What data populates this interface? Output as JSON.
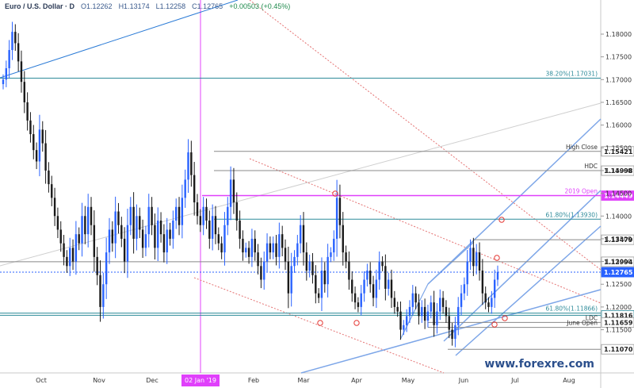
{
  "header": {
    "symbol": "Euro / U.S. Dollar",
    "timeframe": "D",
    "open": "O1.12262",
    "high": "H1.13174",
    "low": "L1.12258",
    "close": "C1.12765",
    "change": "+0.00503 (+0.45%)"
  },
  "watermark": "www.forexre.com",
  "colors": {
    "up": "#2962ff",
    "down": "#1a1a1a",
    "channel": "#7da6e8",
    "magenta": "#e040fb",
    "red_dash": "#e57373",
    "teal": "#2e8b9a",
    "gray": "#888888"
  },
  "chart_data": {
    "type": "candlestick",
    "symbol": "Euro / U.S. Dollar",
    "timeframe": "D",
    "ylim": [
      1.1055,
      1.1875
    ],
    "x_ticks": [
      "Oct",
      "Nov",
      "Dec",
      "02 Jan '19",
      "Feb",
      "Mar",
      "Apr",
      "May",
      "Jun",
      "Jul",
      "Aug"
    ],
    "y_ticks": [
      "1.18000",
      "1.17500",
      "1.17000",
      "1.16500",
      "1.16000",
      "1.15500",
      "1.15000",
      "1.14500",
      "1.14000",
      "1.13500",
      "1.13000",
      "1.12500",
      "1.12000",
      "1.11500"
    ],
    "levels": [
      {
        "label": "38.20%(1.17031)",
        "price": 1.17031,
        "tag": "",
        "style": "teal"
      },
      {
        "label": "High Close",
        "price": 1.15421,
        "tag": "1.15421",
        "style": "gray"
      },
      {
        "label": "HDC",
        "price": 1.14998,
        "tag": "1.14998",
        "style": "gray"
      },
      {
        "label": "2019 Open",
        "price": 1.14449,
        "tag": "1.14449",
        "style": "magenta"
      },
      {
        "label": "61.80%(1.13930)",
        "price": 1.1393,
        "tag": "",
        "style": "teal"
      },
      {
        "label": "",
        "price": 1.13479,
        "tag": "1.13479",
        "style": "gray"
      },
      {
        "label": "",
        "price": 1.12994,
        "tag": "1.12994",
        "style": "gray"
      },
      {
        "label": "",
        "price": 1.12765,
        "tag": "1.12765",
        "style": "current"
      },
      {
        "label": "61.80%(1.11866)",
        "price": 1.11866,
        "tag": "",
        "style": "teal"
      },
      {
        "label": "",
        "price": 1.11816,
        "tag": "1.11816",
        "style": "teal"
      },
      {
        "label": "LDC",
        "price": 1.1166,
        "tag": "1.11659",
        "style": "gray"
      },
      {
        "label": "June Open",
        "price": 1.1155,
        "tag": "",
        "style": "gray"
      },
      {
        "label": "",
        "price": 1.1107,
        "tag": "1.11070",
        "style": "gray"
      }
    ],
    "closes": [
      1.17,
      1.1725,
      1.1765,
      1.1805,
      1.178,
      1.174,
      1.1695,
      1.165,
      1.161,
      1.158,
      1.1545,
      1.152,
      1.159,
      1.156,
      1.15,
      1.147,
      1.144,
      1.14,
      1.137,
      1.134,
      1.131,
      1.129,
      1.133,
      1.13,
      1.136,
      1.134,
      1.14,
      1.136,
      1.142,
      1.138,
      1.131,
      1.127,
      1.12,
      1.125,
      1.132,
      1.137,
      1.134,
      1.141,
      1.138,
      1.135,
      1.13,
      1.138,
      1.142,
      1.135,
      1.14,
      1.137,
      1.133,
      1.136,
      1.142,
      1.138,
      1.133,
      1.139,
      1.136,
      1.132,
      1.137,
      1.135,
      1.139,
      1.142,
      1.138,
      1.144,
      1.148,
      1.154,
      1.149,
      1.143,
      1.14,
      1.138,
      1.142,
      1.139,
      1.135,
      1.14,
      1.136,
      1.134,
      1.132,
      1.138,
      1.142,
      1.148,
      1.143,
      1.139,
      1.135,
      1.132,
      1.133,
      1.131,
      1.135,
      1.132,
      1.129,
      1.126,
      1.13,
      1.134,
      1.132,
      1.134,
      1.131,
      1.136,
      1.133,
      1.13,
      1.123,
      1.129,
      1.131,
      1.134,
      1.138,
      1.132,
      1.128,
      1.13,
      1.127,
      1.123,
      1.122,
      1.128,
      1.125,
      1.131,
      1.132,
      1.135,
      1.144,
      1.138,
      1.132,
      1.13,
      1.126,
      1.123,
      1.121,
      1.12,
      1.123,
      1.126,
      1.128,
      1.125,
      1.122,
      1.126,
      1.13,
      1.129,
      1.124,
      1.126,
      1.122,
      1.12,
      1.119,
      1.115,
      1.116,
      1.118,
      1.12,
      1.123,
      1.121,
      1.118,
      1.12,
      1.117,
      1.119,
      1.121,
      1.116,
      1.119,
      1.122,
      1.12,
      1.118,
      1.115,
      1.113,
      1.116,
      1.12,
      1.123,
      1.125,
      1.13,
      1.133,
      1.129,
      1.132,
      1.128,
      1.123,
      1.121,
      1.12,
      1.122,
      1.126,
      1.1277
    ]
  }
}
